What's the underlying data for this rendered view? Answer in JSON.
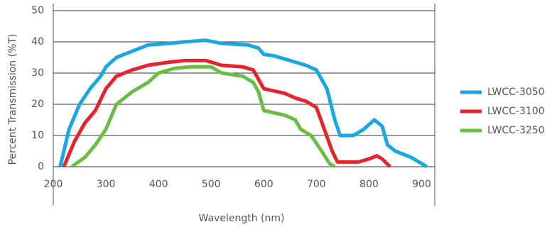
{
  "chart_data": {
    "type": "line",
    "x_label": "Wavelength (nm)",
    "y_label": "Percent Transmission (%T)",
    "xlim": [
      200,
      925
    ],
    "xticks": [
      200,
      300,
      400,
      500,
      600,
      700,
      800,
      900
    ],
    "ylim": [
      0,
      50
    ],
    "yticks": [
      0,
      10,
      20,
      30,
      40,
      50
    ],
    "grid": true,
    "legend": "right",
    "series": [
      {
        "name": "LWCC-3050",
        "color": "#1ba6e4",
        "x": [
          213,
          230,
          250,
          270,
          290,
          300,
          320,
          350,
          380,
          420,
          450,
          490,
          520,
          570,
          590,
          600,
          620,
          650,
          680,
          700,
          720,
          735,
          745,
          770,
          790,
          810,
          825,
          835,
          850,
          880,
          900,
          910
        ],
        "values": [
          0,
          12,
          20,
          25,
          29,
          32,
          35,
          37,
          39,
          39.5,
          40,
          40.5,
          39.5,
          39,
          38,
          36,
          35.5,
          34,
          32.5,
          31,
          25,
          15,
          10,
          10,
          12,
          15,
          13,
          7,
          5,
          3,
          1,
          0
        ]
      },
      {
        "name": "LWCC-3100",
        "color": "#e5242b",
        "x": [
          220,
          240,
          260,
          280,
          300,
          320,
          350,
          380,
          420,
          450,
          490,
          520,
          560,
          580,
          600,
          640,
          660,
          680,
          700,
          715,
          730,
          740,
          780,
          800,
          815,
          825,
          840
        ],
        "values": [
          0,
          8,
          14,
          18,
          25,
          29,
          31,
          32.5,
          33.5,
          34,
          34,
          32.5,
          32,
          31,
          25,
          23.5,
          22,
          21,
          19,
          12,
          5,
          1.5,
          1.5,
          2.5,
          3.5,
          2.5,
          0
        ]
      },
      {
        "name": "LWCC-3250",
        "color": "#6cbd45",
        "x": [
          235,
          260,
          280,
          300,
          320,
          350,
          380,
          400,
          430,
          460,
          500,
          520,
          560,
          580,
          590,
          600,
          640,
          660,
          670,
          690,
          710,
          725,
          735
        ],
        "values": [
          0,
          3,
          7,
          12,
          20,
          24,
          27,
          30,
          31.5,
          32,
          32,
          30,
          29,
          27,
          24,
          18,
          16.5,
          15,
          12,
          10,
          5,
          1,
          0
        ]
      }
    ]
  }
}
